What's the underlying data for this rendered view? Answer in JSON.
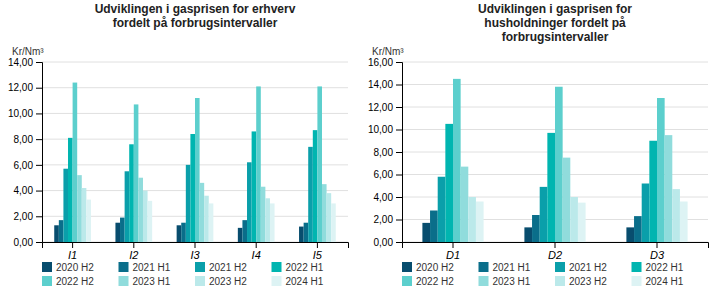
{
  "chart_data": [
    {
      "type": "bar",
      "title": "Udviklingen i gasprisen for erhverv\nfordelt på forbrugsintervaller",
      "ylabel": "Kr/Nm³",
      "categories": [
        "I1",
        "I2",
        "I3",
        "I4",
        "I5"
      ],
      "series": [
        {
          "name": "2020 H2",
          "color": "#084D6E",
          "values": [
            1.3,
            1.5,
            1.3,
            1.1,
            1.2
          ]
        },
        {
          "name": "2021 H1",
          "color": "#0A6E8A",
          "values": [
            1.7,
            1.9,
            1.5,
            1.7,
            1.5
          ]
        },
        {
          "name": "2021 H2",
          "color": "#0A9FAA",
          "values": [
            5.7,
            5.5,
            6.0,
            6.2,
            7.4
          ]
        },
        {
          "name": "2022 H1",
          "color": "#00B5B0",
          "values": [
            8.1,
            7.6,
            8.4,
            8.6,
            8.7
          ]
        },
        {
          "name": "2022 H2",
          "color": "#5CCFCD",
          "values": [
            12.4,
            10.7,
            11.2,
            12.1,
            12.1
          ]
        },
        {
          "name": "2023 H1",
          "color": "#90DCDC",
          "values": [
            5.2,
            5.0,
            4.6,
            4.3,
            4.5
          ]
        },
        {
          "name": "2023 H2",
          "color": "#BBE9EA",
          "values": [
            4.2,
            4.0,
            3.6,
            3.4,
            3.8
          ]
        },
        {
          "name": "2024 H1",
          "color": "#DDF3F4",
          "values": [
            3.3,
            3.2,
            3.0,
            3.0,
            3.0
          ]
        }
      ],
      "ylim": [
        0,
        14
      ],
      "yticks": [
        {
          "value": 0,
          "label": "0,00"
        },
        {
          "value": 2,
          "label": "2,00"
        },
        {
          "value": 4,
          "label": "4,00"
        },
        {
          "value": 6,
          "label": "6,00"
        },
        {
          "value": 8,
          "label": "8,00"
        },
        {
          "value": 10,
          "label": "10,00"
        },
        {
          "value": 12,
          "label": "12,00"
        },
        {
          "value": 14,
          "label": "14,00"
        }
      ],
      "grid": true,
      "legend": "bottom"
    },
    {
      "type": "bar",
      "title": "Udviklingen i gasprisen for\nhusholdninger fordelt på\nforbrugsintervaller",
      "ylabel": "Kr/Nm³",
      "categories": [
        "D1",
        "D2",
        "D3"
      ],
      "series": [
        {
          "name": "2020 H2",
          "color": "#084D6E",
          "values": [
            1.7,
            1.3,
            1.3
          ]
        },
        {
          "name": "2021 H1",
          "color": "#0A6E8A",
          "values": [
            2.8,
            2.4,
            2.3
          ]
        },
        {
          "name": "2021 H2",
          "color": "#0A9FAA",
          "values": [
            5.8,
            4.9,
            5.2
          ]
        },
        {
          "name": "2022 H1",
          "color": "#00B5B0",
          "values": [
            10.5,
            9.7,
            9.0
          ]
        },
        {
          "name": "2022 H2",
          "color": "#5CCFCD",
          "values": [
            14.5,
            13.8,
            12.8
          ]
        },
        {
          "name": "2023 H1",
          "color": "#90DCDC",
          "values": [
            6.7,
            7.5,
            9.5
          ]
        },
        {
          "name": "2023 H2",
          "color": "#BBE9EA",
          "values": [
            4.0,
            4.0,
            4.7
          ]
        },
        {
          "name": "2024 H1",
          "color": "#DDF3F4",
          "values": [
            3.6,
            3.5,
            3.6
          ]
        }
      ],
      "ylim": [
        0,
        16
      ],
      "yticks": [
        {
          "value": 0,
          "label": "0,00"
        },
        {
          "value": 2,
          "label": "2,00"
        },
        {
          "value": 4,
          "label": "4,00"
        },
        {
          "value": 6,
          "label": "6,00"
        },
        {
          "value": 8,
          "label": "8,00"
        },
        {
          "value": 10,
          "label": "10,00"
        },
        {
          "value": 12,
          "label": "12,00"
        },
        {
          "value": 14,
          "label": "14,00"
        },
        {
          "value": 16,
          "label": "16,00"
        }
      ],
      "grid": true,
      "legend": "bottom"
    }
  ]
}
